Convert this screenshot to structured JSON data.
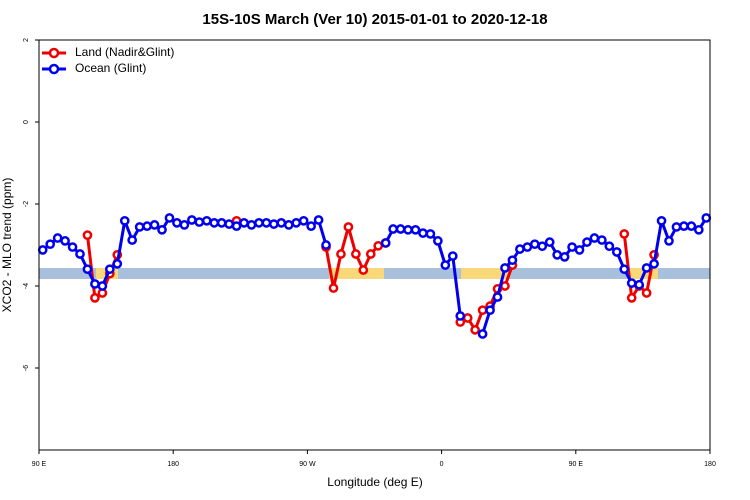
{
  "chart_data": {
    "type": "line",
    "title": "15S-10S March (Ver 10)   2015-01-01 to 2020-12-18",
    "x_label": "Longitude (deg E)",
    "y_label": "XCO2 - MLO trend (ppm)",
    "xlim": [
      90,
      540
    ],
    "xticks": [
      {
        "value": 90,
        "label": "90 E"
      },
      180,
      {
        "value": 270,
        "label": "90 W"
      },
      {
        "value": 360,
        "label": "0"
      },
      {
        "value": 450,
        "label": "90 E"
      },
      {
        "value": 540,
        "label": "180"
      }
    ],
    "ylim": [
      -8,
      2
    ],
    "yticks": [
      -6,
      -4,
      -2,
      0,
      2
    ],
    "legend": "top-left",
    "x": [
      92.5,
      97.5,
      102.5,
      107.5,
      112.5,
      117.5,
      122.5,
      127.5,
      132.5,
      137.5,
      142.5,
      147.5,
      152.5,
      157.5,
      162.5,
      167.5,
      172.5,
      177.5,
      182.5,
      187.5,
      192.5,
      197.5,
      202.5,
      207.5,
      212.5,
      217.5,
      222.5,
      227.5,
      232.5,
      237.5,
      242.5,
      247.5,
      252.5,
      257.5,
      262.5,
      267.5,
      272.5,
      277.5,
      282.5,
      287.5,
      292.5,
      297.5,
      302.5,
      307.5,
      312.5,
      317.5,
      322.5,
      327.5,
      332.5,
      337.5,
      342.5,
      347.5,
      352.5,
      357.5,
      362.5,
      367.5,
      372.5,
      377.5,
      382.5,
      387.5,
      392.5,
      397.5,
      402.5,
      407.5,
      412.5,
      417.5,
      422.5,
      427.5,
      432.5,
      437.5,
      442.5,
      447.5,
      452.5,
      457.5,
      462.5,
      467.5,
      472.5,
      477.5,
      482.5,
      487.5,
      492.5,
      497.5,
      502.5,
      507.5,
      512.5,
      517.5,
      522.5,
      527.5,
      532.5,
      537.5
    ],
    "series": [
      {
        "name": "Land (Nadir&Glint)",
        "color": "#ee0000",
        "values": [
          null,
          null,
          null,
          null,
          null,
          null,
          -2.76,
          -4.29,
          -4.17,
          -3.7,
          -3.24,
          null,
          null,
          null,
          null,
          null,
          null,
          null,
          null,
          null,
          null,
          null,
          null,
          null,
          null,
          null,
          -2.41,
          null,
          null,
          null,
          null,
          null,
          null,
          null,
          null,
          null,
          null,
          null,
          -3.05,
          -4.05,
          -3.22,
          -2.56,
          -3.22,
          -3.61,
          -3.22,
          -3.02,
          -2.95,
          null,
          null,
          null,
          null,
          null,
          null,
          null,
          null,
          null,
          -4.88,
          -4.78,
          -5.07,
          -4.59,
          -4.49,
          -4.07,
          -4.0,
          -3.49,
          null,
          null,
          null,
          null,
          null,
          null,
          null,
          null,
          null,
          null,
          null,
          null,
          null,
          null,
          -2.73,
          -4.29,
          -4.0,
          -4.17,
          -3.24,
          null,
          null,
          null,
          null,
          null,
          null,
          null
        ]
      },
      {
        "name": "Ocean (Glint)",
        "color": "#0000ee",
        "values": [
          -3.12,
          -2.98,
          -2.83,
          -2.9,
          -3.05,
          -3.22,
          -3.59,
          -3.95,
          -4.0,
          -3.59,
          -3.46,
          -2.41,
          -2.88,
          -2.56,
          -2.54,
          -2.51,
          -2.63,
          -2.34,
          -2.46,
          -2.51,
          -2.39,
          -2.44,
          -2.41,
          -2.46,
          -2.46,
          -2.49,
          -2.54,
          -2.46,
          -2.51,
          -2.46,
          -2.46,
          -2.49,
          -2.46,
          -2.51,
          -2.46,
          -2.41,
          -2.54,
          -2.39,
          -3.0,
          null,
          null,
          null,
          null,
          null,
          null,
          null,
          -2.95,
          -2.61,
          -2.61,
          -2.63,
          -2.63,
          -2.71,
          -2.73,
          -2.9,
          -3.49,
          -3.27,
          -4.73,
          null,
          null,
          -5.17,
          -4.59,
          -4.27,
          -3.56,
          -3.37,
          -3.1,
          -3.05,
          -2.98,
          -3.03,
          -2.93,
          -3.24,
          -3.29,
          -3.05,
          -3.12,
          -2.93,
          -2.83,
          -2.88,
          -3.03,
          -3.17,
          -3.59,
          -3.93,
          -3.97,
          -3.56,
          -3.46,
          -2.41,
          -2.9,
          -2.56,
          -2.54,
          -2.54,
          -2.63,
          -2.34
        ]
      }
    ]
  }
}
